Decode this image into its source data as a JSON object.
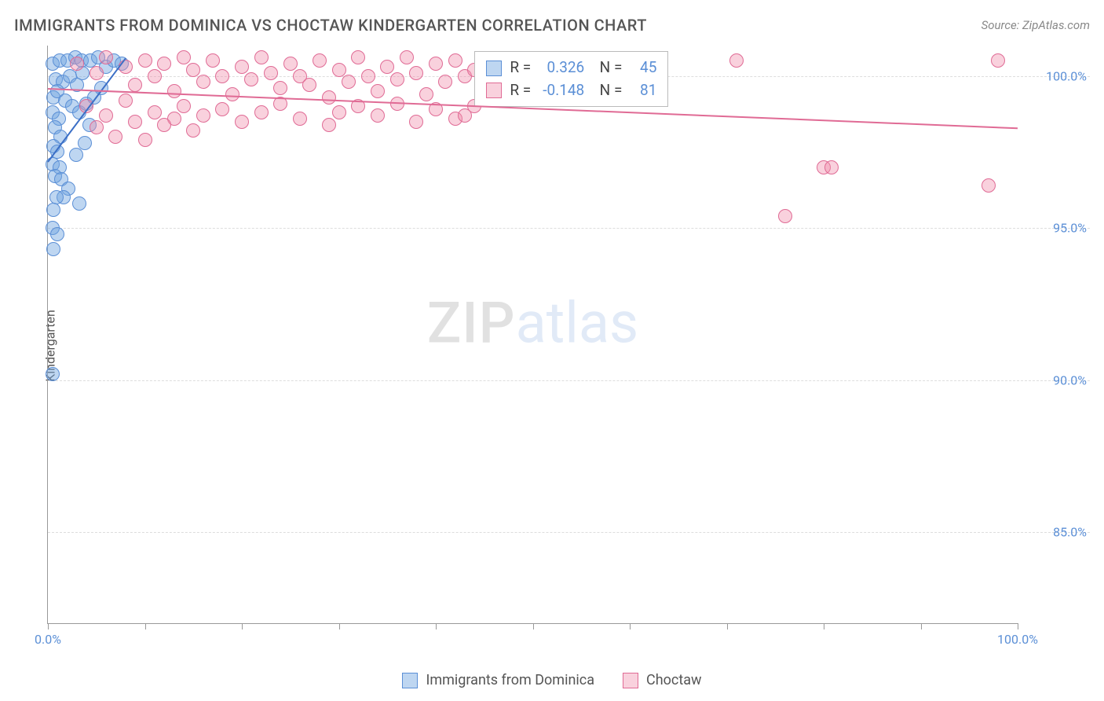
{
  "header": {
    "title": "IMMIGRANTS FROM DOMINICA VS CHOCTAW KINDERGARTEN CORRELATION CHART",
    "source": "Source: ZipAtlas.com"
  },
  "chart": {
    "type": "scatter",
    "y_axis_label": "Kindergarten",
    "xlim": [
      0,
      100
    ],
    "ylim": [
      82,
      101
    ],
    "x_ticks": [
      0,
      10,
      20,
      30,
      40,
      50,
      60,
      70,
      80,
      90,
      100
    ],
    "x_tick_labels": {
      "0": "0.0%",
      "100": "100.0%"
    },
    "y_ticks": [
      85,
      90,
      95,
      100
    ],
    "y_tick_labels": {
      "85": "85.0%",
      "90": "90.0%",
      "95": "95.0%",
      "100": "100.0%"
    },
    "background_color": "#ffffff",
    "grid_color": "#dddddd",
    "axis_color": "#999999",
    "tick_label_color": "#5b8fd6",
    "point_radius": 9,
    "series": [
      {
        "name": "Immigrants from Dominica",
        "fill_color": "rgba(110,165,225,0.45)",
        "stroke_color": "#5b8fd6",
        "r": 0.326,
        "n": 45,
        "trend": {
          "x1": 0,
          "y1": 97.2,
          "x2": 8,
          "y2": 100.6,
          "color": "#3b6fc6",
          "width": 2
        },
        "points": [
          [
            0.5,
            100.4
          ],
          [
            1.2,
            100.5
          ],
          [
            2.0,
            100.5
          ],
          [
            2.8,
            100.6
          ],
          [
            3.5,
            100.5
          ],
          [
            4.4,
            100.5
          ],
          [
            5.2,
            100.6
          ],
          [
            6.0,
            100.3
          ],
          [
            6.8,
            100.5
          ],
          [
            7.6,
            100.4
          ],
          [
            0.8,
            99.9
          ],
          [
            1.5,
            99.8
          ],
          [
            2.3,
            100.0
          ],
          [
            3.0,
            99.7
          ],
          [
            0.6,
            99.3
          ],
          [
            1.0,
            99.5
          ],
          [
            1.8,
            99.2
          ],
          [
            0.5,
            98.8
          ],
          [
            1.1,
            98.6
          ],
          [
            0.7,
            98.3
          ],
          [
            1.3,
            98.0
          ],
          [
            0.6,
            97.7
          ],
          [
            1.0,
            97.5
          ],
          [
            0.5,
            97.1
          ],
          [
            1.2,
            97.0
          ],
          [
            0.7,
            96.7
          ],
          [
            1.4,
            96.6
          ],
          [
            2.1,
            96.3
          ],
          [
            1.6,
            96.0
          ],
          [
            0.9,
            96.0
          ],
          [
            3.2,
            95.8
          ],
          [
            0.6,
            95.6
          ],
          [
            0.5,
            95.0
          ],
          [
            1.0,
            94.8
          ],
          [
            0.6,
            94.3
          ],
          [
            0.5,
            90.2
          ],
          [
            2.5,
            99.0
          ],
          [
            3.2,
            98.8
          ],
          [
            4.0,
            99.1
          ],
          [
            4.8,
            99.3
          ],
          [
            3.8,
            97.8
          ],
          [
            2.9,
            97.4
          ],
          [
            5.5,
            99.6
          ],
          [
            4.3,
            98.4
          ],
          [
            3.6,
            100.1
          ]
        ]
      },
      {
        "name": "Choctaw",
        "fill_color": "rgba(240,140,170,0.40)",
        "stroke_color": "#e06b95",
        "r": -0.148,
        "n": 81,
        "trend": {
          "x1": 0,
          "y1": 99.6,
          "x2": 100,
          "y2": 98.3,
          "color": "#e06b95",
          "width": 2
        },
        "points": [
          [
            3,
            100.4
          ],
          [
            5,
            100.1
          ],
          [
            6,
            100.6
          ],
          [
            8,
            100.3
          ],
          [
            9,
            99.7
          ],
          [
            10,
            100.5
          ],
          [
            11,
            100.0
          ],
          [
            12,
            100.4
          ],
          [
            13,
            99.5
          ],
          [
            14,
            100.6
          ],
          [
            15,
            100.2
          ],
          [
            16,
            99.8
          ],
          [
            17,
            100.5
          ],
          [
            18,
            100.0
          ],
          [
            19,
            99.4
          ],
          [
            20,
            100.3
          ],
          [
            21,
            99.9
          ],
          [
            22,
            100.6
          ],
          [
            23,
            100.1
          ],
          [
            24,
            99.6
          ],
          [
            25,
            100.4
          ],
          [
            26,
            100.0
          ],
          [
            27,
            99.7
          ],
          [
            28,
            100.5
          ],
          [
            29,
            99.3
          ],
          [
            30,
            100.2
          ],
          [
            31,
            99.8
          ],
          [
            32,
            100.6
          ],
          [
            33,
            100.0
          ],
          [
            34,
            99.5
          ],
          [
            35,
            100.3
          ],
          [
            36,
            99.9
          ],
          [
            37,
            100.6
          ],
          [
            38,
            100.1
          ],
          [
            39,
            99.4
          ],
          [
            40,
            100.4
          ],
          [
            41,
            99.8
          ],
          [
            42,
            100.5
          ],
          [
            43,
            100.0
          ],
          [
            44,
            100.2
          ],
          [
            45,
            100.4
          ],
          [
            46,
            99.7
          ],
          [
            4,
            99.0
          ],
          [
            6,
            98.7
          ],
          [
            8,
            99.2
          ],
          [
            9,
            98.5
          ],
          [
            11,
            98.8
          ],
          [
            5,
            98.3
          ],
          [
            7,
            98.0
          ],
          [
            13,
            98.6
          ],
          [
            15,
            98.2
          ],
          [
            10,
            97.9
          ],
          [
            12,
            98.4
          ],
          [
            14,
            99.0
          ],
          [
            16,
            98.7
          ],
          [
            18,
            98.9
          ],
          [
            20,
            98.5
          ],
          [
            22,
            98.8
          ],
          [
            24,
            99.1
          ],
          [
            26,
            98.6
          ],
          [
            30,
            98.8
          ],
          [
            32,
            99.0
          ],
          [
            29,
            98.4
          ],
          [
            34,
            98.7
          ],
          [
            36,
            99.1
          ],
          [
            38,
            98.5
          ],
          [
            40,
            98.9
          ],
          [
            42,
            98.6
          ],
          [
            47,
            100.3
          ],
          [
            48,
            99.6
          ],
          [
            49,
            100.0
          ],
          [
            50,
            100.4
          ],
          [
            71,
            100.5
          ],
          [
            80,
            97.0
          ],
          [
            80.8,
            97.0
          ],
          [
            97,
            96.4
          ],
          [
            76,
            95.4
          ],
          [
            98,
            100.5
          ],
          [
            44,
            99.0
          ],
          [
            46,
            100.4
          ],
          [
            43,
            98.7
          ]
        ]
      }
    ],
    "stat_box": {
      "left_pct": 44,
      "top_pct": 1
    },
    "watermark": {
      "zip": "ZIP",
      "atlas": "atlas"
    }
  },
  "legend": {
    "items": [
      {
        "label": "Immigrants from Dominica",
        "fill": "rgba(110,165,225,0.45)",
        "stroke": "#5b8fd6"
      },
      {
        "label": "Choctaw",
        "fill": "rgba(240,140,170,0.40)",
        "stroke": "#e06b95"
      }
    ]
  }
}
